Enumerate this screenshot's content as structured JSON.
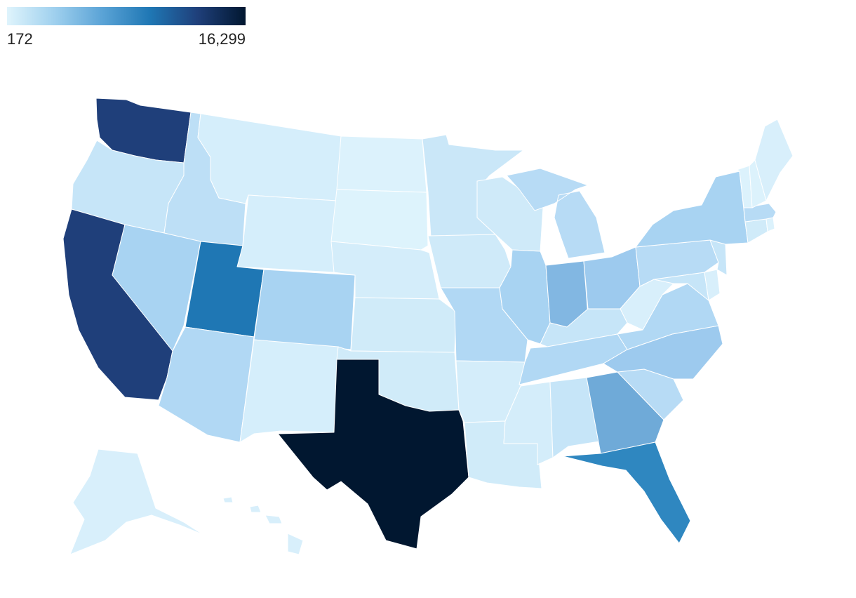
{
  "legend": {
    "min_label": "172",
    "max_label": "16,299",
    "gradient": [
      "#dff4fc",
      "#9fd0ee",
      "#5aa3d6",
      "#1f77b4",
      "#1f3f7a",
      "#011730"
    ]
  },
  "states": [
    {
      "code": "TX",
      "color": "#011730"
    },
    {
      "code": "CA",
      "color": "#1f3f7a"
    },
    {
      "code": "WA",
      "color": "#1f3f7a"
    },
    {
      "code": "UT",
      "color": "#1f77b4"
    },
    {
      "code": "FL",
      "color": "#2f87c0"
    },
    {
      "code": "GA",
      "color": "#6faad8"
    },
    {
      "code": "IN",
      "color": "#82b7e2"
    },
    {
      "code": "OH",
      "color": "#9dcaee"
    },
    {
      "code": "NC",
      "color": "#9dcaee"
    },
    {
      "code": "IL",
      "color": "#a8d3f2"
    },
    {
      "code": "NY",
      "color": "#a8d3f2"
    },
    {
      "code": "CO",
      "color": "#a8d3f2"
    },
    {
      "code": "NV",
      "color": "#a8d3f2"
    },
    {
      "code": "AZ",
      "color": "#b1d8f4"
    },
    {
      "code": "VA",
      "color": "#b1d8f4"
    },
    {
      "code": "TN",
      "color": "#b1d8f4"
    },
    {
      "code": "MO",
      "color": "#b1d8f4"
    },
    {
      "code": "MI",
      "color": "#b7dbf5"
    },
    {
      "code": "PA",
      "color": "#b7dbf5"
    },
    {
      "code": "SC",
      "color": "#b7dbf5"
    },
    {
      "code": "MA",
      "color": "#b7dbf5"
    },
    {
      "code": "ID",
      "color": "#bddff6"
    },
    {
      "code": "OR",
      "color": "#c6e5f8"
    },
    {
      "code": "AL",
      "color": "#c6e5f8"
    },
    {
      "code": "KY",
      "color": "#c6e5f8"
    },
    {
      "code": "MD",
      "color": "#c6e5f8"
    },
    {
      "code": "NJ",
      "color": "#c6e5f8"
    },
    {
      "code": "MN",
      "color": "#cae7f8"
    },
    {
      "code": "WI",
      "color": "#cfeaf9"
    },
    {
      "code": "IA",
      "color": "#cfeaf9"
    },
    {
      "code": "KS",
      "color": "#d0ebf9"
    },
    {
      "code": "OK",
      "color": "#d0ebf9"
    },
    {
      "code": "LA",
      "color": "#d0ebf9"
    },
    {
      "code": "AR",
      "color": "#d4edfa"
    },
    {
      "code": "MS",
      "color": "#d4edfa"
    },
    {
      "code": "NE",
      "color": "#d4edfa"
    },
    {
      "code": "MT",
      "color": "#d5eefb"
    },
    {
      "code": "WY",
      "color": "#d5eefb"
    },
    {
      "code": "NM",
      "color": "#d5eefb"
    },
    {
      "code": "WV",
      "color": "#d8effb"
    },
    {
      "code": "ME",
      "color": "#d8effb"
    },
    {
      "code": "CT",
      "color": "#d0ebf9"
    },
    {
      "code": "DE",
      "color": "#d8effb"
    },
    {
      "code": "AK",
      "color": "#d8effb"
    },
    {
      "code": "HI",
      "color": "#d8effb"
    },
    {
      "code": "ND",
      "color": "#dcf2fc"
    },
    {
      "code": "SD",
      "color": "#ddf3fc"
    },
    {
      "code": "NH",
      "color": "#dcf2fc"
    },
    {
      "code": "VT",
      "color": "#dcf2fc"
    },
    {
      "code": "RI",
      "color": "#dcf2fc"
    }
  ]
}
